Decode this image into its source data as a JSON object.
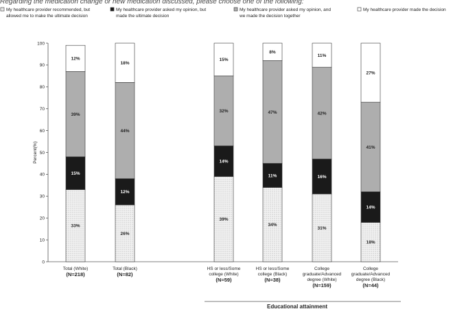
{
  "question": "Regarding the medication change or new medication discussed, please choose one of the following:",
  "colors": {
    "recommended": "#ebebeb",
    "asked_decided": "#1a1a1a",
    "together": "#aeaeae",
    "provider": "#ffffff",
    "stroke": "#333333"
  },
  "chart_data": {
    "type": "bar",
    "stacked": true,
    "title": "",
    "xlabel": "",
    "ylabel": "Percent(%)",
    "ylim": [
      0,
      100
    ],
    "yticks": [
      0,
      10,
      20,
      30,
      40,
      50,
      60,
      70,
      80,
      90,
      100
    ],
    "categories": [
      {
        "line1": "Total (White)",
        "line2": "",
        "n": "(N=218)"
      },
      {
        "line1": "Total (Black)",
        "line2": "",
        "n": "(N=82)"
      },
      {
        "line1": "HS or less/Some",
        "line2": "college (White)",
        "n": "(N=59)"
      },
      {
        "line1": "HS or less/Some",
        "line2": "college (Black)",
        "n": "(N=38)"
      },
      {
        "line1": "College",
        "line2": "graduate/Advanced",
        "line3": "degree (White)",
        "n": "(N=159)"
      },
      {
        "line1": "College",
        "line2": "graduate/Advanced",
        "line3": "degree (Black)",
        "n": "(N=44)"
      }
    ],
    "series": [
      {
        "name": "My healthcare provider recommended, but allowed me to make the ultimate decision",
        "legend_lines": [
          "My healthcare provider recommended, but",
          "allowed me to make the ultimate decision"
        ],
        "key": "recommended",
        "values": [
          33,
          26,
          39,
          34,
          31,
          18
        ],
        "labels": [
          "33%",
          "26%",
          "39%",
          "34%",
          "31%",
          "18%"
        ]
      },
      {
        "name": "My healthcare provider asked my opinion, but made the ultimate decision",
        "legend_lines": [
          "My healthcare provider asked my opinion, but",
          "made the ultimate decision"
        ],
        "key": "asked_decided",
        "values": [
          15,
          12,
          14,
          11,
          16,
          14
        ],
        "labels": [
          "15%",
          "12%",
          "14%",
          "11%",
          "16%",
          "14%"
        ]
      },
      {
        "name": "My healthcare provider asked my opinion, and we made the decision together",
        "legend_lines": [
          "My healthcare provider asked my opinion, and",
          "we made the decision together"
        ],
        "key": "together",
        "values": [
          39,
          44,
          32,
          47,
          42,
          41
        ],
        "labels": [
          "39%",
          "44%",
          "32%",
          "47%",
          "42%",
          "41%"
        ]
      },
      {
        "name": "My healthcare provider made the decision",
        "legend_lines": [
          "My healthcare provider made the decision"
        ],
        "key": "provider",
        "values": [
          12,
          18,
          15,
          8,
          11,
          27
        ],
        "labels": [
          "12%",
          "18%",
          "15%",
          "8%",
          "11%",
          "27%"
        ]
      }
    ],
    "group_annotation": "Educational attainment",
    "legend_position": "top"
  }
}
